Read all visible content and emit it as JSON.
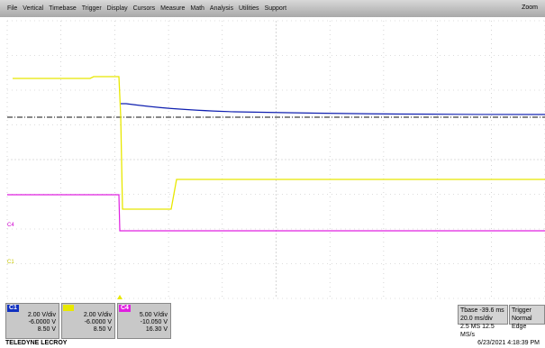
{
  "menu": {
    "items": [
      "File",
      "Vertical",
      "Timebase",
      "Trigger",
      "Display",
      "Cursors",
      "Measure",
      "Math",
      "Analysis",
      "Utilities",
      "Support"
    ],
    "zoom": "Zoom"
  },
  "markers": {
    "c4": "C4",
    "c1": "C1"
  },
  "channels": [
    {
      "name": "C1",
      "scale": "2.00 V/div",
      "offset": "-6.0000 V",
      "level": "8.50 V"
    },
    {
      "scale": "2.00 V/div",
      "offset": "-6.0000 V",
      "level": "8.50 V"
    },
    {
      "name": "C4",
      "scale": "5.00 V/div",
      "offset": "-10.050 V",
      "level": "16.30 V"
    }
  ],
  "timebase": {
    "label": "Tbase",
    "delay": "-39.6 ms",
    "scale": "20.0 ms/div",
    "points": "2.5 MS",
    "rate": "12.5 MS/s"
  },
  "trigger": {
    "label": "Trigger",
    "mode": "Normal",
    "type": "Edge"
  },
  "footer": {
    "brand": "TELEDYNE LECROY",
    "timestamp": "6/23/2021 4:18:39 PM"
  }
}
